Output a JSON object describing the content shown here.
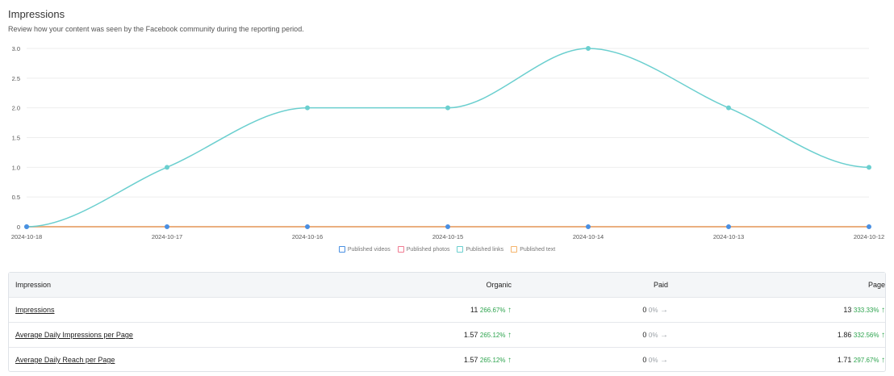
{
  "header": {
    "title": "Impressions",
    "subtitle": "Review how your content was seen by the Facebook community during the reporting period."
  },
  "chart_data": {
    "type": "line",
    "categories": [
      "2024-10-18",
      "2024-10-17",
      "2024-10-16",
      "2024-10-15",
      "2024-10-14",
      "2024-10-13",
      "2024-10-12"
    ],
    "series": [
      {
        "name": "Published videos",
        "color": "#4a90e2",
        "values": [
          0,
          0,
          0,
          0,
          0,
          0,
          0
        ]
      },
      {
        "name": "Published photos",
        "color": "#f07b92",
        "values": [
          0,
          0,
          0,
          0,
          0,
          0,
          0
        ]
      },
      {
        "name": "Published links",
        "color": "#6bcfcf",
        "values": [
          0,
          1,
          2,
          2,
          3,
          2,
          1
        ]
      },
      {
        "name": "Published text",
        "color": "#f5b46b",
        "values": [
          0,
          0,
          0,
          0,
          0,
          0,
          0
        ]
      }
    ],
    "yticks": [
      "0",
      "0.5",
      "1.0",
      "1.5",
      "2.0",
      "2.5",
      "3.0"
    ],
    "ylim": [
      0,
      3
    ],
    "grid": true,
    "legend_position": "bottom"
  },
  "table": {
    "headers": {
      "impression": "Impression",
      "organic": "Organic",
      "paid": "Paid",
      "page": "Page"
    },
    "rows": [
      {
        "label": "Impressions",
        "organic": {
          "value": "11",
          "change": "266.67%",
          "trend": "up"
        },
        "paid": {
          "value": "0",
          "change": "0%",
          "trend": "flat"
        },
        "page": {
          "value": "13",
          "change": "333.33%",
          "trend": "up"
        }
      },
      {
        "label": "Average Daily Impressions per Page",
        "organic": {
          "value": "1.57",
          "change": "265.12%",
          "trend": "up"
        },
        "paid": {
          "value": "0",
          "change": "0%",
          "trend": "flat"
        },
        "page": {
          "value": "1.86",
          "change": "332.56%",
          "trend": "up"
        }
      },
      {
        "label": "Average Daily Reach per Page",
        "organic": {
          "value": "1.57",
          "change": "265.12%",
          "trend": "up"
        },
        "paid": {
          "value": "0",
          "change": "0%",
          "trend": "flat"
        },
        "page": {
          "value": "1.71",
          "change": "297.67%",
          "trend": "up"
        }
      }
    ]
  },
  "icons": {
    "trend_up": "↑",
    "trend_flat": "→"
  }
}
